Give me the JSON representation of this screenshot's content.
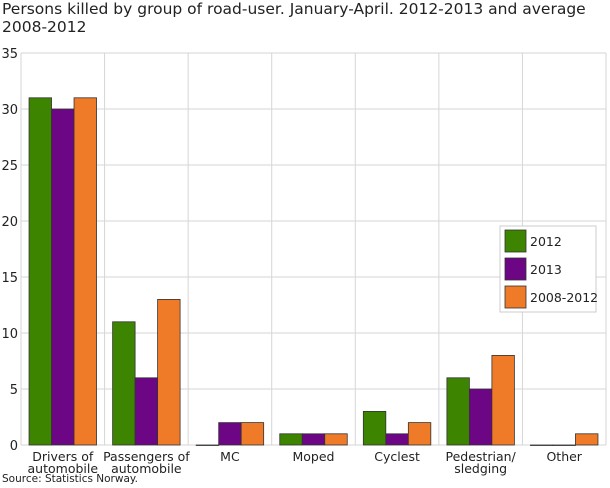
{
  "chart_data": {
    "type": "bar",
    "title": "Persons killed by group of road-user. January-April. 2012-2013 and average 2008-2012",
    "xlabel": "",
    "ylabel": "",
    "ylim": [
      0,
      35
    ],
    "yticks": [
      0,
      5,
      10,
      15,
      20,
      25,
      30,
      35
    ],
    "grid": true,
    "legend_placement": "right",
    "categories": [
      [
        "Drivers of",
        "automobile"
      ],
      [
        "Passengers of",
        "automobile"
      ],
      [
        "MC"
      ],
      [
        "Moped"
      ],
      [
        "Cyclest"
      ],
      [
        "Pedestrian/",
        "sledging"
      ],
      [
        "Other"
      ]
    ],
    "series": [
      {
        "name": "2012",
        "color": "#3d8500",
        "values": [
          31,
          11,
          0,
          1,
          3,
          6,
          0
        ]
      },
      {
        "name": "2013",
        "color": "#6c0684",
        "values": [
          30,
          6,
          2,
          1,
          1,
          5,
          0
        ]
      },
      {
        "name": "2008-2012",
        "color": "#ef7b28",
        "values": [
          31,
          13,
          2,
          1,
          2,
          8,
          1
        ]
      }
    ]
  },
  "source": "Source: Statistics Norway."
}
